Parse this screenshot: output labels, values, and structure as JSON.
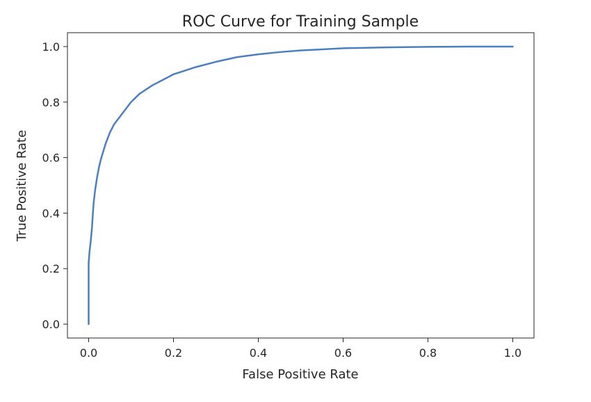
{
  "chart_data": {
    "type": "line",
    "title": "ROC Curve for Training Sample",
    "xlabel": "False Positive Rate",
    "ylabel": "True Positive Rate",
    "xlim": [
      -0.05,
      1.05
    ],
    "ylim": [
      -0.05,
      1.05
    ],
    "xticks": [
      0.0,
      0.2,
      0.4,
      0.6,
      0.8,
      1.0
    ],
    "yticks": [
      0.0,
      0.2,
      0.4,
      0.6,
      0.8,
      1.0
    ],
    "xtick_labels": [
      "0.0",
      "0.2",
      "0.4",
      "0.6",
      "0.8",
      "1.0"
    ],
    "ytick_labels": [
      "0.0",
      "0.2",
      "0.4",
      "0.6",
      "0.8",
      "1.0"
    ],
    "grid": false,
    "series": [
      {
        "color": "#4c7fbf",
        "x": [
          0.0,
          0.0,
          0.0,
          0.002,
          0.005,
          0.008,
          0.01,
          0.012,
          0.015,
          0.02,
          0.025,
          0.03,
          0.04,
          0.05,
          0.06,
          0.08,
          0.1,
          0.12,
          0.15,
          0.2,
          0.25,
          0.3,
          0.35,
          0.4,
          0.45,
          0.5,
          0.55,
          0.6,
          0.7,
          0.8,
          0.9,
          1.0
        ],
        "y": [
          0.0,
          0.12,
          0.22,
          0.26,
          0.3,
          0.35,
          0.4,
          0.44,
          0.48,
          0.53,
          0.57,
          0.6,
          0.65,
          0.69,
          0.72,
          0.76,
          0.8,
          0.83,
          0.86,
          0.9,
          0.925,
          0.945,
          0.962,
          0.972,
          0.98,
          0.986,
          0.99,
          0.994,
          0.997,
          0.999,
          1.0,
          1.0
        ]
      }
    ]
  }
}
